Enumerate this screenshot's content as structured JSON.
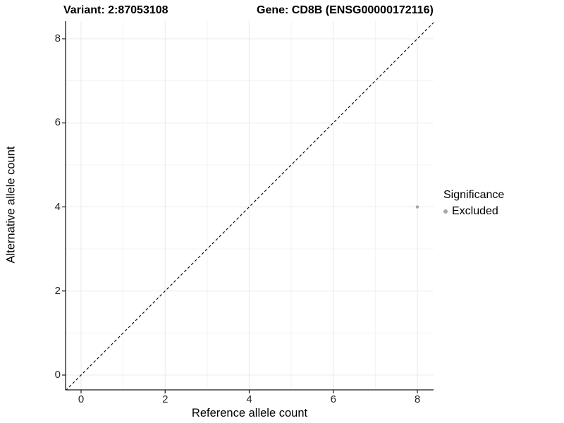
{
  "header": {
    "title_left": "Variant: 2:87053108",
    "title_right": "Gene: CD8B (ENSG00000172116)"
  },
  "chart_data": {
    "type": "scatter",
    "xlabel": "Reference allele count",
    "ylabel": "Alternative allele count",
    "xlim": [
      -0.4,
      8.4
    ],
    "ylim": [
      -0.4,
      8.4
    ],
    "x_ticks": [
      0,
      2,
      4,
      6,
      8
    ],
    "y_ticks": [
      0,
      2,
      4,
      6,
      8
    ],
    "x_minor_ticks": [
      1,
      3,
      5,
      7
    ],
    "y_minor_ticks": [
      1,
      3,
      5,
      7
    ],
    "grid": "major and minor, light grey on white panel",
    "identity_line": {
      "equation": "y = x",
      "style": "dashed",
      "color": "#000000"
    },
    "series": [
      {
        "name": "Excluded",
        "color": "#a8a8a8",
        "points": [
          {
            "x": 8,
            "y": 4
          }
        ]
      }
    ],
    "legend": {
      "title": "Significance",
      "position": "right",
      "items": [
        {
          "label": "Excluded",
          "color": "#a8a8a8"
        }
      ]
    }
  },
  "colors": {
    "background": "#ffffff",
    "grid_major": "#ebebeb",
    "grid_minor": "#f3f3f3",
    "axis_line": "#1a1a1a",
    "tick_mark": "#1a1a1a"
  }
}
